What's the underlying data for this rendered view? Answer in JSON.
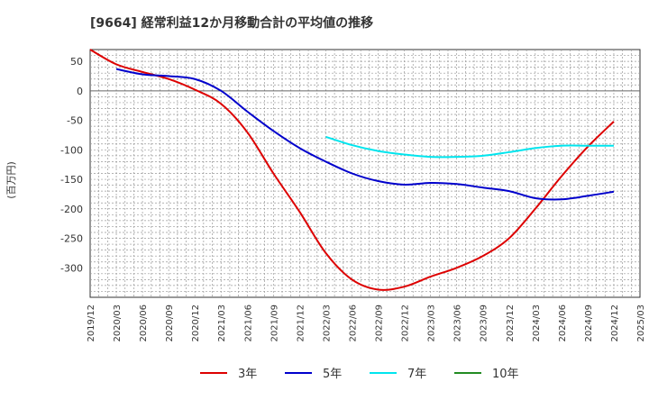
{
  "chart_data": {
    "type": "line",
    "title": "[9664]  経常利益12か月移動合計の平均値の推移",
    "ylabel": "(百万円)",
    "xlabel": "",
    "x_ticks": [
      "2019/12",
      "2020/03",
      "2020/06",
      "2020/09",
      "2020/12",
      "2021/03",
      "2021/06",
      "2021/09",
      "2021/12",
      "2022/03",
      "2022/06",
      "2022/09",
      "2022/12",
      "2023/03",
      "2023/06",
      "2023/09",
      "2023/12",
      "2024/03",
      "2024/06",
      "2024/09",
      "2024/12",
      "2025/03"
    ],
    "y_ticks": [
      50,
      0,
      -50,
      -100,
      -150,
      -200,
      -250,
      -300
    ],
    "ylim": [
      -350,
      70
    ],
    "grid": true,
    "legend_position": "bottom",
    "series": [
      {
        "name": "3年",
        "color": "#dd0000",
        "points": [
          [
            "2019/12",
            70
          ],
          [
            "2020/03",
            45
          ],
          [
            "2020/06",
            32
          ],
          [
            "2020/09",
            20
          ],
          [
            "2020/12",
            2
          ],
          [
            "2021/03",
            -22
          ],
          [
            "2021/06",
            -70
          ],
          [
            "2021/09",
            -140
          ],
          [
            "2021/12",
            -205
          ],
          [
            "2022/03",
            -275
          ],
          [
            "2022/06",
            -320
          ],
          [
            "2022/09",
            -337
          ],
          [
            "2022/12",
            -332
          ],
          [
            "2023/03",
            -315
          ],
          [
            "2023/06",
            -300
          ],
          [
            "2023/09",
            -280
          ],
          [
            "2023/12",
            -250
          ],
          [
            "2024/03",
            -200
          ],
          [
            "2024/06",
            -145
          ],
          [
            "2024/09",
            -95
          ],
          [
            "2024/12",
            -52
          ]
        ]
      },
      {
        "name": "5年",
        "color": "#0000cc",
        "points": [
          [
            "2020/03",
            37
          ],
          [
            "2020/06",
            28
          ],
          [
            "2020/09",
            25
          ],
          [
            "2020/12",
            20
          ],
          [
            "2021/03",
            0
          ],
          [
            "2021/06",
            -35
          ],
          [
            "2021/09",
            -68
          ],
          [
            "2021/12",
            -97
          ],
          [
            "2022/03",
            -120
          ],
          [
            "2022/06",
            -140
          ],
          [
            "2022/09",
            -153
          ],
          [
            "2022/12",
            -159
          ],
          [
            "2023/03",
            -156
          ],
          [
            "2023/06",
            -158
          ],
          [
            "2023/09",
            -164
          ],
          [
            "2023/12",
            -170
          ],
          [
            "2024/03",
            -182
          ],
          [
            "2024/06",
            -184
          ],
          [
            "2024/09",
            -178
          ],
          [
            "2024/12",
            -171
          ]
        ]
      },
      {
        "name": "7年",
        "color": "#00e5ee",
        "points": [
          [
            "2022/03",
            -78
          ],
          [
            "2022/06",
            -92
          ],
          [
            "2022/09",
            -102
          ],
          [
            "2022/12",
            -108
          ],
          [
            "2023/03",
            -112
          ],
          [
            "2023/06",
            -112
          ],
          [
            "2023/09",
            -110
          ],
          [
            "2023/12",
            -104
          ],
          [
            "2024/03",
            -97
          ],
          [
            "2024/06",
            -93
          ],
          [
            "2024/09",
            -93
          ],
          [
            "2024/12",
            -93
          ]
        ]
      },
      {
        "name": "10年",
        "color": "#228b22",
        "points": []
      }
    ]
  }
}
